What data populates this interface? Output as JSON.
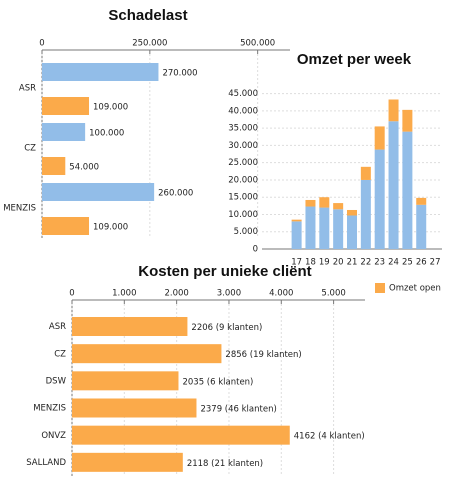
{
  "chart_data": [
    {
      "type": "bar",
      "orientation": "horizontal",
      "title": "Schadelast",
      "categories": [
        "ASR",
        "CZ",
        "MENZIS"
      ],
      "series": [
        {
          "color": "#92bde8",
          "values": [
            270000,
            100000,
            260000
          ],
          "value_labels": [
            "270.000",
            "100.000",
            "260.000"
          ]
        },
        {
          "color": "#fbaa4a",
          "values": [
            109000,
            54000,
            109000
          ],
          "value_labels": [
            "109.000",
            "54.000",
            "109.000"
          ]
        }
      ],
      "xlim": [
        0,
        575000
      ],
      "xticks": [
        0,
        {
          "value": 250000,
          "label": "250.000"
        },
        {
          "value": 500000,
          "label": "500.000"
        }
      ],
      "grid": true
    },
    {
      "type": "bar",
      "stacked": true,
      "title": "Omzet per week",
      "categories": [
        null,
        null,
        "17",
        "18",
        "19",
        "20",
        "21",
        "22",
        "23",
        "24",
        "25",
        "26",
        "27"
      ],
      "series": [
        {
          "color": "#92bde8",
          "values": [
            null,
            null,
            8000,
            12300,
            12000,
            11500,
            9700,
            20000,
            28800,
            37000,
            34000,
            12800,
            null
          ]
        },
        {
          "name": "Omzet open",
          "color": "#fbaa4a",
          "values": [
            null,
            null,
            500,
            1900,
            3000,
            1800,
            1600,
            3800,
            6700,
            6300,
            6300,
            2000,
            null
          ]
        }
      ],
      "ylim": [
        0,
        47500
      ],
      "yticks": [
        0,
        {
          "value": 5000,
          "label": "5.000"
        },
        {
          "value": 10000,
          "label": "10.000"
        },
        {
          "value": 15000,
          "label": "15.000"
        },
        {
          "value": 20000,
          "label": "20.000"
        },
        {
          "value": 25000,
          "label": "25.000"
        },
        {
          "value": 30000,
          "label": "30.000"
        },
        {
          "value": 35000,
          "label": "35.000"
        },
        {
          "value": 40000,
          "label": "40.000"
        },
        {
          "value": 45000,
          "label": "45.000"
        }
      ],
      "grid": true,
      "legend": "bottom"
    },
    {
      "type": "bar",
      "orientation": "horizontal",
      "title": "Kosten per unieke cliënt",
      "categories": [
        "ASR",
        "CZ",
        "DSW",
        "MENZIS",
        "ONVZ",
        "SALLAND"
      ],
      "values": [
        2206,
        2856,
        2035,
        2379,
        4162,
        2118
      ],
      "value_labels": [
        "2206 (9 klanten)",
        "2856 (19 klanten)",
        "2035 (6 klanten)",
        "2379 (46 klanten)",
        "4162 (4 klanten)",
        "2118 (21 klanten)"
      ],
      "color": "#fbaa4a",
      "xlim": [
        0,
        5600
      ],
      "xticks": [
        0,
        {
          "value": 1000,
          "label": "1.000"
        },
        {
          "value": 2000,
          "label": "2.000"
        },
        {
          "value": 3000,
          "label": "3.000"
        },
        {
          "value": 4000,
          "label": "4.000"
        },
        {
          "value": 5000,
          "label": "5.000"
        }
      ],
      "grid": true
    }
  ]
}
